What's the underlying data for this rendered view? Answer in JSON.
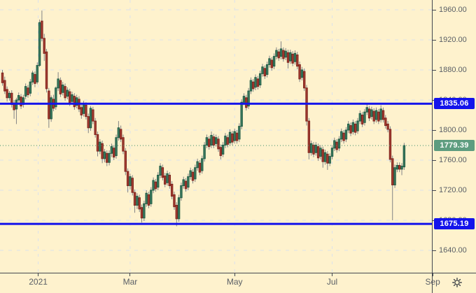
{
  "chart_data": {
    "type": "candlestick",
    "x_axis": {
      "ticks": [
        {
          "label": "2021",
          "day": 15.4
        },
        {
          "label": "Mar",
          "day": 55
        },
        {
          "label": "May",
          "day": 100
        },
        {
          "label": "Jul",
          "day": 142
        },
        {
          "label": "Sep",
          "day": 185.3
        }
      ]
    },
    "y_axis": {
      "min": 1640,
      "max": 1960,
      "step": 40,
      "tick_labels": [
        "1960.00",
        "1920.00",
        "1880.00",
        "1840.00",
        "1800.00",
        "1760.00",
        "1720.00",
        "1680.00",
        "1640.00"
      ]
    },
    "levels": [
      {
        "price": 1835.06,
        "label": "1835.06",
        "color": "#1414EB"
      },
      {
        "price": 1675.19,
        "label": "1675.19",
        "color": "#1414EB"
      }
    ],
    "last_price": {
      "price": 1779.39,
      "label": "1779.39",
      "badge_color": "#5E9D80",
      "line_color": "#3E8E6E"
    },
    "colors": {
      "background": "#FEF2CD",
      "grid": "#DCE2EA",
      "up_body": "#3E7D62",
      "up_border": "#1E5B44",
      "down_body": "#A63D33",
      "down_border": "#7E251D",
      "wick": "#75787F",
      "axis_line": "#434850",
      "axis_text": "#5A5F66"
    },
    "candles": [
      [
        1876,
        1880,
        1859,
        1863
      ],
      [
        1866,
        1871,
        1848,
        1852
      ],
      [
        1854,
        1858,
        1838,
        1843
      ],
      [
        1843,
        1852,
        1839,
        1849
      ],
      [
        1849,
        1853,
        1830,
        1834
      ],
      [
        1836,
        1840,
        1815,
        1827
      ],
      [
        1828,
        1843,
        1808,
        1840
      ],
      [
        1840,
        1850,
        1835,
        1846
      ],
      [
        1844,
        1848,
        1828,
        1832
      ],
      [
        1834,
        1847,
        1830,
        1843
      ],
      [
        1845,
        1862,
        1841,
        1858
      ],
      [
        1856,
        1860,
        1843,
        1847
      ],
      [
        1849,
        1868,
        1845,
        1864
      ],
      [
        1864,
        1879,
        1860,
        1876
      ],
      [
        1874,
        1878,
        1857,
        1862
      ],
      [
        1864,
        1890,
        1861,
        1886
      ],
      [
        1886,
        1947,
        1884,
        1943
      ],
      [
        1945,
        1959,
        1918,
        1922
      ],
      [
        1922,
        1928,
        1892,
        1902
      ],
      [
        1904,
        1908,
        1850,
        1855
      ],
      [
        1852,
        1856,
        1803,
        1815
      ],
      [
        1815,
        1846,
        1811,
        1843
      ],
      [
        1841,
        1847,
        1825,
        1829
      ],
      [
        1831,
        1858,
        1827,
        1856
      ],
      [
        1856,
        1877,
        1852,
        1868
      ],
      [
        1866,
        1870,
        1844,
        1848
      ],
      [
        1850,
        1864,
        1846,
        1860
      ],
      [
        1858,
        1862,
        1839,
        1843
      ],
      [
        1845,
        1857,
        1841,
        1853
      ],
      [
        1851,
        1855,
        1832,
        1836
      ],
      [
        1838,
        1851,
        1834,
        1847
      ],
      [
        1845,
        1849,
        1827,
        1831
      ],
      [
        1833,
        1847,
        1829,
        1843
      ],
      [
        1841,
        1845,
        1824,
        1828
      ],
      [
        1830,
        1834,
        1815,
        1820
      ],
      [
        1822,
        1839,
        1818,
        1835
      ],
      [
        1833,
        1837,
        1814,
        1818
      ],
      [
        1818,
        1822,
        1796,
        1803
      ],
      [
        1803,
        1832,
        1799,
        1829
      ],
      [
        1827,
        1831,
        1808,
        1812
      ],
      [
        1812,
        1816,
        1790,
        1794
      ],
      [
        1794,
        1798,
        1765,
        1772
      ],
      [
        1772,
        1788,
        1768,
        1784
      ],
      [
        1782,
        1786,
        1756,
        1762
      ],
      [
        1762,
        1775,
        1757,
        1771
      ],
      [
        1769,
        1773,
        1752,
        1757
      ],
      [
        1757,
        1773,
        1753,
        1769
      ],
      [
        1769,
        1782,
        1764,
        1778
      ],
      [
        1776,
        1780,
        1760,
        1764
      ],
      [
        1766,
        1794,
        1762,
        1790
      ],
      [
        1790,
        1812,
        1786,
        1803
      ],
      [
        1801,
        1806,
        1784,
        1788
      ],
      [
        1790,
        1794,
        1768,
        1772
      ],
      [
        1772,
        1776,
        1740,
        1745
      ],
      [
        1745,
        1749,
        1717,
        1726
      ],
      [
        1726,
        1742,
        1721,
        1738
      ],
      [
        1736,
        1740,
        1713,
        1717
      ],
      [
        1717,
        1721,
        1690,
        1700
      ],
      [
        1700,
        1716,
        1695,
        1712
      ],
      [
        1710,
        1714,
        1691,
        1695
      ],
      [
        1697,
        1701,
        1677,
        1683
      ],
      [
        1683,
        1706,
        1679,
        1702
      ],
      [
        1702,
        1720,
        1698,
        1716
      ],
      [
        1714,
        1718,
        1696,
        1700
      ],
      [
        1702,
        1724,
        1698,
        1720
      ],
      [
        1720,
        1737,
        1716,
        1733
      ],
      [
        1731,
        1735,
        1718,
        1722
      ],
      [
        1724,
        1744,
        1720,
        1740
      ],
      [
        1740,
        1756,
        1736,
        1752
      ],
      [
        1750,
        1754,
        1733,
        1737
      ],
      [
        1739,
        1743,
        1724,
        1728
      ],
      [
        1730,
        1746,
        1726,
        1742
      ],
      [
        1740,
        1744,
        1722,
        1726
      ],
      [
        1728,
        1732,
        1708,
        1712
      ],
      [
        1714,
        1718,
        1694,
        1698
      ],
      [
        1700,
        1704,
        1672,
        1682
      ],
      [
        1682,
        1714,
        1678,
        1710
      ],
      [
        1710,
        1730,
        1706,
        1726
      ],
      [
        1726,
        1738,
        1722,
        1734
      ],
      [
        1732,
        1736,
        1718,
        1722
      ],
      [
        1724,
        1742,
        1720,
        1738
      ],
      [
        1738,
        1750,
        1734,
        1746
      ],
      [
        1744,
        1748,
        1729,
        1733
      ],
      [
        1735,
        1754,
        1731,
        1750
      ],
      [
        1750,
        1762,
        1746,
        1758
      ],
      [
        1756,
        1760,
        1740,
        1744
      ],
      [
        1746,
        1766,
        1742,
        1762
      ],
      [
        1762,
        1784,
        1758,
        1780
      ],
      [
        1780,
        1794,
        1776,
        1790
      ],
      [
        1788,
        1792,
        1774,
        1778
      ],
      [
        1780,
        1798,
        1776,
        1793
      ],
      [
        1791,
        1795,
        1776,
        1780
      ],
      [
        1782,
        1794,
        1778,
        1790
      ],
      [
        1788,
        1792,
        1771,
        1775
      ],
      [
        1777,
        1781,
        1761,
        1766
      ],
      [
        1768,
        1784,
        1764,
        1780
      ],
      [
        1780,
        1796,
        1776,
        1792
      ],
      [
        1790,
        1794,
        1777,
        1781
      ],
      [
        1783,
        1801,
        1779,
        1797
      ],
      [
        1795,
        1799,
        1780,
        1784
      ],
      [
        1786,
        1802,
        1782,
        1798
      ],
      [
        1796,
        1800,
        1782,
        1786
      ],
      [
        1788,
        1809,
        1784,
        1805
      ],
      [
        1805,
        1841,
        1801,
        1837
      ],
      [
        1837,
        1849,
        1833,
        1845
      ],
      [
        1843,
        1847,
        1826,
        1830
      ],
      [
        1832,
        1856,
        1828,
        1852
      ],
      [
        1852,
        1870,
        1848,
        1866
      ],
      [
        1864,
        1868,
        1851,
        1855
      ],
      [
        1857,
        1874,
        1853,
        1870
      ],
      [
        1868,
        1872,
        1854,
        1858
      ],
      [
        1860,
        1879,
        1856,
        1875
      ],
      [
        1875,
        1888,
        1871,
        1884
      ],
      [
        1882,
        1886,
        1868,
        1872
      ],
      [
        1874,
        1891,
        1870,
        1887
      ],
      [
        1887,
        1899,
        1883,
        1895
      ],
      [
        1893,
        1897,
        1879,
        1883
      ],
      [
        1885,
        1902,
        1881,
        1898
      ],
      [
        1898,
        1910,
        1894,
        1906
      ],
      [
        1904,
        1908,
        1892,
        1896
      ],
      [
        1898,
        1918,
        1894,
        1908
      ],
      [
        1906,
        1910,
        1891,
        1895
      ],
      [
        1897,
        1909,
        1893,
        1905
      ],
      [
        1903,
        1907,
        1882,
        1890
      ],
      [
        1892,
        1907,
        1888,
        1903
      ],
      [
        1901,
        1905,
        1885,
        1889
      ],
      [
        1891,
        1906,
        1887,
        1902
      ],
      [
        1900,
        1904,
        1881,
        1885
      ],
      [
        1887,
        1891,
        1864,
        1868
      ],
      [
        1870,
        1884,
        1866,
        1880
      ],
      [
        1878,
        1882,
        1852,
        1856
      ],
      [
        1856,
        1860,
        1806,
        1812
      ],
      [
        1812,
        1816,
        1761,
        1770
      ],
      [
        1770,
        1786,
        1766,
        1782
      ],
      [
        1780,
        1784,
        1764,
        1768
      ],
      [
        1770,
        1784,
        1766,
        1780
      ],
      [
        1778,
        1782,
        1759,
        1763
      ],
      [
        1765,
        1780,
        1761,
        1776
      ],
      [
        1774,
        1778,
        1750,
        1758
      ],
      [
        1758,
        1774,
        1754,
        1770
      ],
      [
        1768,
        1772,
        1747,
        1756
      ],
      [
        1756,
        1769,
        1752,
        1765
      ],
      [
        1765,
        1780,
        1761,
        1776
      ],
      [
        1776,
        1790,
        1772,
        1786
      ],
      [
        1784,
        1788,
        1770,
        1774
      ],
      [
        1776,
        1792,
        1772,
        1788
      ],
      [
        1788,
        1802,
        1784,
        1798
      ],
      [
        1796,
        1800,
        1782,
        1786
      ],
      [
        1788,
        1804,
        1784,
        1800
      ],
      [
        1800,
        1812,
        1796,
        1808
      ],
      [
        1806,
        1810,
        1792,
        1796
      ],
      [
        1798,
        1814,
        1794,
        1810
      ],
      [
        1808,
        1812,
        1793,
        1797
      ],
      [
        1799,
        1816,
        1795,
        1812
      ],
      [
        1812,
        1826,
        1808,
        1822
      ],
      [
        1820,
        1824,
        1804,
        1808
      ],
      [
        1810,
        1828,
        1806,
        1824
      ],
      [
        1824,
        1834,
        1820,
        1830
      ],
      [
        1828,
        1832,
        1812,
        1816
      ],
      [
        1818,
        1831,
        1814,
        1827
      ],
      [
        1825,
        1829,
        1808,
        1812
      ],
      [
        1814,
        1830,
        1810,
        1826
      ],
      [
        1824,
        1828,
        1808,
        1812
      ],
      [
        1814,
        1833,
        1810,
        1828
      ],
      [
        1826,
        1830,
        1810,
        1814
      ],
      [
        1816,
        1820,
        1802,
        1806
      ],
      [
        1808,
        1812,
        1797,
        1801
      ],
      [
        1801,
        1805,
        1757,
        1761
      ],
      [
        1762,
        1766,
        1680,
        1727
      ],
      [
        1727,
        1754,
        1723,
        1750
      ],
      [
        1748,
        1757,
        1744,
        1753
      ],
      [
        1753,
        1757,
        1744,
        1748
      ],
      [
        1748,
        1756,
        1740,
        1752
      ],
      [
        1751,
        1783,
        1747,
        1779.39
      ]
    ]
  },
  "icons": {
    "settings": "gear-icon"
  }
}
